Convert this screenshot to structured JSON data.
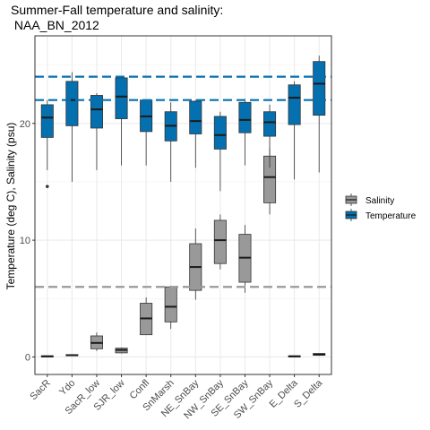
{
  "chart_data": {
    "type": "boxplot",
    "title_line1": "Summer-Fall temperature and salinity:",
    "title_line2": " NAA_BN_2012",
    "xlabel": "",
    "ylabel": "Temperature (deg C), Salinity (psu)",
    "ylim": [
      -1.5,
      27.5
    ],
    "yticks": [
      0,
      10,
      20
    ],
    "grid": true,
    "legend_position": "right",
    "categories": [
      "SacR",
      "Ydo",
      "SacR_low",
      "SJR_low",
      "Confl",
      "SnMarsh",
      "NE_SnBay",
      "NW_SnBay",
      "SE_SnBay",
      "SW_SnBay",
      "E_Delta",
      "S_Delta"
    ],
    "series": [
      {
        "name": "Salinity",
        "color": "#999999",
        "boxes": [
          {
            "category": "SacR",
            "lower_whisker": 0.0,
            "q1": 0.0,
            "median": 0.05,
            "q3": 0.1,
            "upper_whisker": 0.1,
            "outliers": []
          },
          {
            "category": "Ydo",
            "lower_whisker": 0.1,
            "q1": 0.1,
            "median": 0.15,
            "q3": 0.2,
            "upper_whisker": 0.2,
            "outliers": []
          },
          {
            "category": "SacR_low",
            "lower_whisker": 0.5,
            "q1": 0.7,
            "median": 1.2,
            "q3": 1.8,
            "upper_whisker": 2.1,
            "outliers": []
          },
          {
            "category": "SJR_low",
            "lower_whisker": 0.3,
            "q1": 0.35,
            "median": 0.6,
            "q3": 0.75,
            "upper_whisker": 0.8,
            "outliers": []
          },
          {
            "category": "Confl",
            "lower_whisker": 1.9,
            "q1": 1.9,
            "median": 3.3,
            "q3": 4.6,
            "upper_whisker": 5.1,
            "outliers": []
          },
          {
            "category": "SnMarsh",
            "lower_whisker": 2.4,
            "q1": 3.0,
            "median": 4.3,
            "q3": 6.0,
            "upper_whisker": 6.1,
            "outliers": []
          },
          {
            "category": "NE_SnBay",
            "lower_whisker": 4.9,
            "q1": 5.7,
            "median": 7.7,
            "q3": 9.7,
            "upper_whisker": 11.0,
            "outliers": []
          },
          {
            "category": "NW_SnBay",
            "lower_whisker": 7.5,
            "q1": 8.0,
            "median": 10.0,
            "q3": 11.7,
            "upper_whisker": 12.2,
            "outliers": []
          },
          {
            "category": "SE_SnBay",
            "lower_whisker": 5.5,
            "q1": 6.4,
            "median": 8.5,
            "q3": 10.5,
            "upper_whisker": 11.3,
            "outliers": []
          },
          {
            "category": "SW_SnBay",
            "lower_whisker": 12.2,
            "q1": 13.2,
            "median": 15.4,
            "q3": 17.2,
            "upper_whisker": 17.9,
            "outliers": []
          },
          {
            "category": "E_Delta",
            "lower_whisker": 0.0,
            "q1": 0.0,
            "median": 0.05,
            "q3": 0.1,
            "upper_whisker": 0.1,
            "outliers": []
          },
          {
            "category": "S_Delta",
            "lower_whisker": 0.1,
            "q1": 0.15,
            "median": 0.2,
            "q3": 0.3,
            "upper_whisker": 0.3,
            "outliers": []
          }
        ]
      },
      {
        "name": "Temperature",
        "color": "#0570b0",
        "boxes": [
          {
            "category": "SacR",
            "lower_whisker": 16.0,
            "q1": 18.8,
            "median": 20.5,
            "q3": 21.6,
            "upper_whisker": 22.0,
            "outliers": [
              14.6
            ]
          },
          {
            "category": "Ydo",
            "lower_whisker": 15.0,
            "q1": 19.8,
            "median": 22.0,
            "q3": 23.6,
            "upper_whisker": 24.4,
            "outliers": []
          },
          {
            "category": "SacR_low",
            "lower_whisker": 16.0,
            "q1": 19.6,
            "median": 21.2,
            "q3": 22.4,
            "upper_whisker": 22.6,
            "outliers": []
          },
          {
            "category": "SJR_low",
            "lower_whisker": 16.4,
            "q1": 20.4,
            "median": 22.3,
            "q3": 23.9,
            "upper_whisker": 24.0,
            "outliers": []
          },
          {
            "category": "Confl",
            "lower_whisker": 16.4,
            "q1": 19.3,
            "median": 20.6,
            "q3": 22.0,
            "upper_whisker": 22.0,
            "outliers": []
          },
          {
            "category": "SnMarsh",
            "lower_whisker": 15.0,
            "q1": 18.5,
            "median": 19.8,
            "q3": 21.0,
            "upper_whisker": 21.8,
            "outliers": []
          },
          {
            "category": "NE_SnBay",
            "lower_whisker": 16.2,
            "q1": 19.1,
            "median": 20.2,
            "q3": 21.9,
            "upper_whisker": 22.0,
            "outliers": []
          },
          {
            "category": "NW_SnBay",
            "lower_whisker": 14.2,
            "q1": 17.8,
            "median": 19.0,
            "q3": 20.6,
            "upper_whisker": 21.0,
            "outliers": []
          },
          {
            "category": "SE_SnBay",
            "lower_whisker": 16.4,
            "q1": 19.2,
            "median": 20.3,
            "q3": 21.8,
            "upper_whisker": 22.1,
            "outliers": []
          },
          {
            "category": "SW_SnBay",
            "lower_whisker": 16.2,
            "q1": 18.9,
            "median": 20.1,
            "q3": 21.0,
            "upper_whisker": 21.6,
            "outliers": []
          },
          {
            "category": "E_Delta",
            "lower_whisker": 15.2,
            "q1": 19.9,
            "median": 22.2,
            "q3": 23.3,
            "upper_whisker": 23.6,
            "outliers": []
          },
          {
            "category": "S_Delta",
            "lower_whisker": 15.8,
            "q1": 20.7,
            "median": 23.4,
            "q3": 25.3,
            "upper_whisker": 25.8,
            "outliers": []
          }
        ]
      }
    ],
    "reference_lines": [
      {
        "y": 24,
        "color": "#0570b0",
        "style": "dashed"
      },
      {
        "y": 22,
        "color": "#0570b0",
        "style": "dashed"
      },
      {
        "y": 6,
        "color": "#999999",
        "style": "dashed"
      }
    ]
  }
}
